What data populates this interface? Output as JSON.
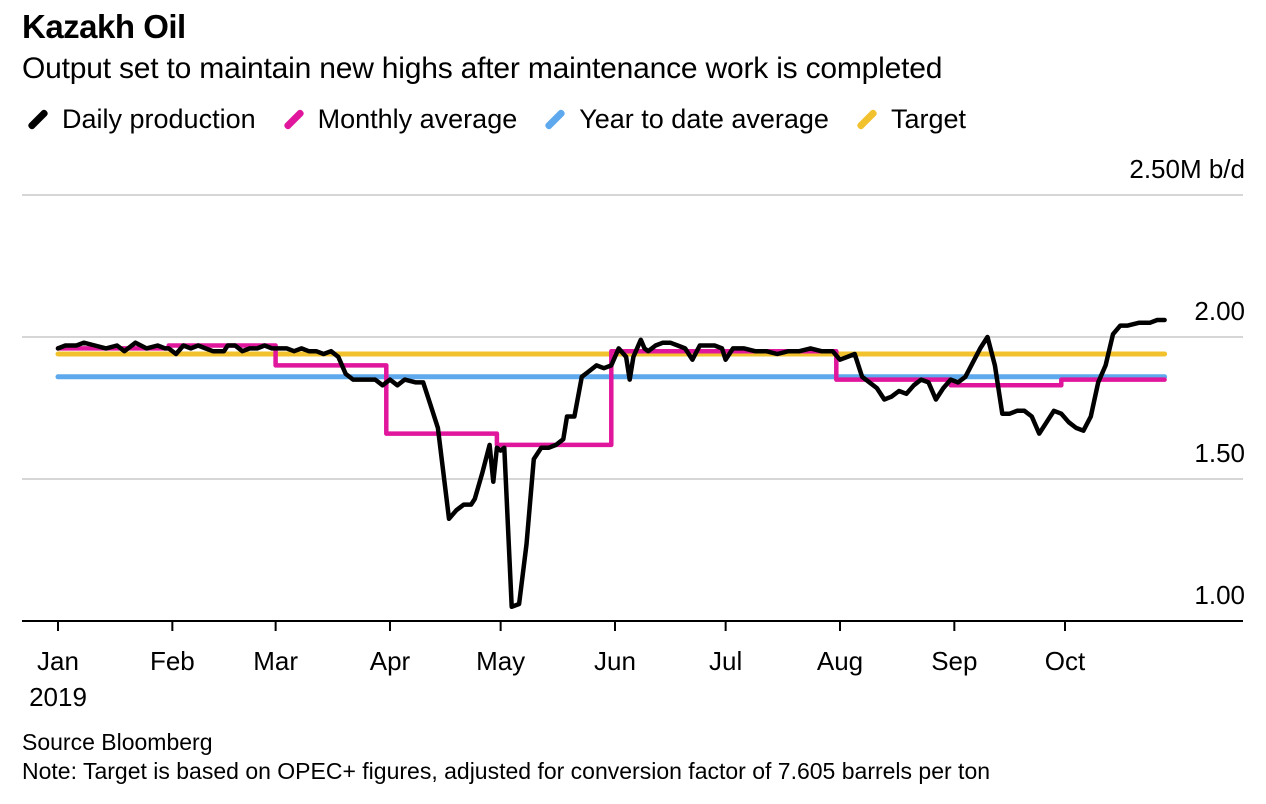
{
  "header": {
    "title": "Kazakh Oil",
    "subtitle": "Output set to maintain new highs after maintenance work is completed"
  },
  "legend": [
    {
      "label": "Daily production",
      "color": "#000000"
    },
    {
      "label": "Monthly average",
      "color": "#e0169c"
    },
    {
      "label": "Year to date average",
      "color": "#5ea9ee"
    },
    {
      "label": "Target",
      "color": "#f2c22e"
    }
  ],
  "footer": {
    "source": "Source Bloomberg",
    "note": "Note: Target is based on OPEC+ figures, adjusted for conversion factor of 7.605 barrels per ton"
  },
  "chart_data": {
    "type": "line",
    "title": "Kazakh Oil",
    "subtitle": "Output set to maintain new highs after maintenance work is completed",
    "y_unit_label": "2.50M b/d",
    "ylim": [
      1.0,
      2.5
    ],
    "yticks": [
      {
        "value": 2.5,
        "label": "2.50M b/d"
      },
      {
        "value": 2.0,
        "label": "2.00"
      },
      {
        "value": 1.5,
        "label": "1.50"
      },
      {
        "value": 1.0,
        "label": "1.00"
      }
    ],
    "grid": true,
    "y_axis_side": "right",
    "legend_position": "top-left",
    "xlim": [
      "2019-01-01",
      "2019-10-31"
    ],
    "xticks": [
      {
        "date": "2019-01-01",
        "label": "Jan",
        "sublabel": "2019"
      },
      {
        "date": "2019-02-01",
        "label": "Feb"
      },
      {
        "date": "2019-03-01",
        "label": "Mar"
      },
      {
        "date": "2019-04-01",
        "label": "Apr"
      },
      {
        "date": "2019-05-01",
        "label": "May"
      },
      {
        "date": "2019-06-01",
        "label": "Jun"
      },
      {
        "date": "2019-07-01",
        "label": "Jul"
      },
      {
        "date": "2019-08-01",
        "label": "Aug"
      },
      {
        "date": "2019-09-01",
        "label": "Sep"
      },
      {
        "date": "2019-10-01",
        "label": "Oct"
      }
    ],
    "series": [
      {
        "name": "Daily production",
        "color": "#000000",
        "points": [
          [
            "2019-01-01",
            1.96
          ],
          [
            "2019-01-03",
            1.97
          ],
          [
            "2019-01-06",
            1.97
          ],
          [
            "2019-01-08",
            1.98
          ],
          [
            "2019-01-11",
            1.97
          ],
          [
            "2019-01-14",
            1.96
          ],
          [
            "2019-01-17",
            1.97
          ],
          [
            "2019-01-19",
            1.95
          ],
          [
            "2019-01-22",
            1.98
          ],
          [
            "2019-01-25",
            1.96
          ],
          [
            "2019-01-28",
            1.97
          ],
          [
            "2019-01-30",
            1.96
          ],
          [
            "2019-01-31",
            1.96
          ],
          [
            "2019-02-02",
            1.94
          ],
          [
            "2019-02-04",
            1.97
          ],
          [
            "2019-02-06",
            1.96
          ],
          [
            "2019-02-08",
            1.97
          ],
          [
            "2019-02-10",
            1.96
          ],
          [
            "2019-02-12",
            1.95
          ],
          [
            "2019-02-14",
            1.95
          ],
          [
            "2019-02-15",
            1.95
          ],
          [
            "2019-02-16",
            1.97
          ],
          [
            "2019-02-18",
            1.97
          ],
          [
            "2019-02-20",
            1.95
          ],
          [
            "2019-02-22",
            1.96
          ],
          [
            "2019-02-24",
            1.96
          ],
          [
            "2019-02-26",
            1.97
          ],
          [
            "2019-02-28",
            1.96
          ],
          [
            "2019-03-02",
            1.96
          ],
          [
            "2019-03-04",
            1.96
          ],
          [
            "2019-03-06",
            1.95
          ],
          [
            "2019-03-08",
            1.96
          ],
          [
            "2019-03-10",
            1.95
          ],
          [
            "2019-03-12",
            1.95
          ],
          [
            "2019-03-14",
            1.94
          ],
          [
            "2019-03-16",
            1.95
          ],
          [
            "2019-03-18",
            1.93
          ],
          [
            "2019-03-20",
            1.87
          ],
          [
            "2019-03-22",
            1.85
          ],
          [
            "2019-03-25",
            1.85
          ],
          [
            "2019-03-28",
            1.85
          ],
          [
            "2019-03-30",
            1.83
          ],
          [
            "2019-04-01",
            1.85
          ],
          [
            "2019-04-03",
            1.83
          ],
          [
            "2019-04-05",
            1.85
          ],
          [
            "2019-04-08",
            1.84
          ],
          [
            "2019-04-10",
            1.84
          ],
          [
            "2019-04-12",
            1.76
          ],
          [
            "2019-04-14",
            1.68
          ],
          [
            "2019-04-17",
            1.36
          ],
          [
            "2019-04-19",
            1.39
          ],
          [
            "2019-04-21",
            1.41
          ],
          [
            "2019-04-23",
            1.41
          ],
          [
            "2019-04-24",
            1.43
          ],
          [
            "2019-04-26",
            1.52
          ],
          [
            "2019-04-28",
            1.62
          ],
          [
            "2019-04-29",
            1.49
          ],
          [
            "2019-04-30",
            1.61
          ],
          [
            "2019-05-01",
            1.6
          ],
          [
            "2019-05-02",
            1.61
          ],
          [
            "2019-05-04",
            1.05
          ],
          [
            "2019-05-06",
            1.06
          ],
          [
            "2019-05-08",
            1.27
          ],
          [
            "2019-05-10",
            1.57
          ],
          [
            "2019-05-12",
            1.61
          ],
          [
            "2019-05-14",
            1.61
          ],
          [
            "2019-05-16",
            1.62
          ],
          [
            "2019-05-18",
            1.64
          ],
          [
            "2019-05-19",
            1.72
          ],
          [
            "2019-05-21",
            1.72
          ],
          [
            "2019-05-23",
            1.86
          ],
          [
            "2019-05-25",
            1.88
          ],
          [
            "2019-05-27",
            1.9
          ],
          [
            "2019-05-29",
            1.89
          ],
          [
            "2019-05-31",
            1.9
          ],
          [
            "2019-06-02",
            1.96
          ],
          [
            "2019-06-04",
            1.93
          ],
          [
            "2019-06-05",
            1.85
          ],
          [
            "2019-06-06",
            1.93
          ],
          [
            "2019-06-08",
            1.99
          ],
          [
            "2019-06-09",
            1.96
          ],
          [
            "2019-06-10",
            1.95
          ],
          [
            "2019-06-12",
            1.97
          ],
          [
            "2019-06-14",
            1.98
          ],
          [
            "2019-06-16",
            1.98
          ],
          [
            "2019-06-18",
            1.97
          ],
          [
            "2019-06-20",
            1.96
          ],
          [
            "2019-06-22",
            1.92
          ],
          [
            "2019-06-24",
            1.97
          ],
          [
            "2019-06-26",
            1.97
          ],
          [
            "2019-06-28",
            1.97
          ],
          [
            "2019-06-30",
            1.96
          ],
          [
            "2019-07-01",
            1.92
          ],
          [
            "2019-07-03",
            1.96
          ],
          [
            "2019-07-06",
            1.96
          ],
          [
            "2019-07-09",
            1.95
          ],
          [
            "2019-07-12",
            1.95
          ],
          [
            "2019-07-15",
            1.94
          ],
          [
            "2019-07-18",
            1.95
          ],
          [
            "2019-07-21",
            1.95
          ],
          [
            "2019-07-24",
            1.96
          ],
          [
            "2019-07-27",
            1.95
          ],
          [
            "2019-07-30",
            1.95
          ],
          [
            "2019-08-01",
            1.92
          ],
          [
            "2019-08-03",
            1.93
          ],
          [
            "2019-08-05",
            1.94
          ],
          [
            "2019-08-07",
            1.86
          ],
          [
            "2019-08-09",
            1.84
          ],
          [
            "2019-08-11",
            1.82
          ],
          [
            "2019-08-13",
            1.78
          ],
          [
            "2019-08-15",
            1.79
          ],
          [
            "2019-08-17",
            1.81
          ],
          [
            "2019-08-19",
            1.8
          ],
          [
            "2019-08-21",
            1.83
          ],
          [
            "2019-08-23",
            1.85
          ],
          [
            "2019-08-25",
            1.84
          ],
          [
            "2019-08-27",
            1.78
          ],
          [
            "2019-08-29",
            1.82
          ],
          [
            "2019-08-31",
            1.85
          ],
          [
            "2019-09-02",
            1.84
          ],
          [
            "2019-09-04",
            1.86
          ],
          [
            "2019-09-06",
            1.91
          ],
          [
            "2019-09-08",
            1.96
          ],
          [
            "2019-09-10",
            2.0
          ],
          [
            "2019-09-12",
            1.9
          ],
          [
            "2019-09-14",
            1.73
          ],
          [
            "2019-09-16",
            1.73
          ],
          [
            "2019-09-18",
            1.74
          ],
          [
            "2019-09-20",
            1.74
          ],
          [
            "2019-09-22",
            1.72
          ],
          [
            "2019-09-24",
            1.66
          ],
          [
            "2019-09-26",
            1.7
          ],
          [
            "2019-09-28",
            1.74
          ],
          [
            "2019-09-30",
            1.73
          ],
          [
            "2019-10-02",
            1.7
          ],
          [
            "2019-10-04",
            1.68
          ],
          [
            "2019-10-06",
            1.67
          ],
          [
            "2019-10-08",
            1.72
          ],
          [
            "2019-10-10",
            1.84
          ],
          [
            "2019-10-12",
            1.9
          ],
          [
            "2019-10-14",
            2.01
          ],
          [
            "2019-10-16",
            2.04
          ],
          [
            "2019-10-18",
            2.04
          ],
          [
            "2019-10-21",
            2.05
          ],
          [
            "2019-10-24",
            2.05
          ],
          [
            "2019-10-26",
            2.06
          ],
          [
            "2019-10-28",
            2.06
          ]
        ]
      },
      {
        "name": "Monthly average",
        "color": "#e0169c",
        "steps": [
          {
            "from": "2019-01-01",
            "to": "2019-01-31",
            "value": 1.96
          },
          {
            "from": "2019-01-31",
            "to": "2019-03-01",
            "value": 1.97
          },
          {
            "from": "2019-03-01",
            "to": "2019-03-31",
            "value": 1.9
          },
          {
            "from": "2019-03-31",
            "to": "2019-04-30",
            "value": 1.66
          },
          {
            "from": "2019-04-30",
            "to": "2019-05-31",
            "value": 1.62
          },
          {
            "from": "2019-05-31",
            "to": "2019-07-31",
            "value": 1.95
          },
          {
            "from": "2019-07-31",
            "to": "2019-08-31",
            "value": 1.85
          },
          {
            "from": "2019-08-31",
            "to": "2019-09-30",
            "value": 1.83
          },
          {
            "from": "2019-09-30",
            "to": "2019-10-28",
            "value": 1.85
          }
        ]
      },
      {
        "name": "Year to date average",
        "color": "#5ea9ee",
        "points": [
          [
            "2019-01-01",
            1.86
          ],
          [
            "2019-10-28",
            1.86
          ]
        ]
      },
      {
        "name": "Target",
        "color": "#f2c22e",
        "points": [
          [
            "2019-01-01",
            1.94
          ],
          [
            "2019-10-28",
            1.94
          ]
        ]
      }
    ]
  }
}
